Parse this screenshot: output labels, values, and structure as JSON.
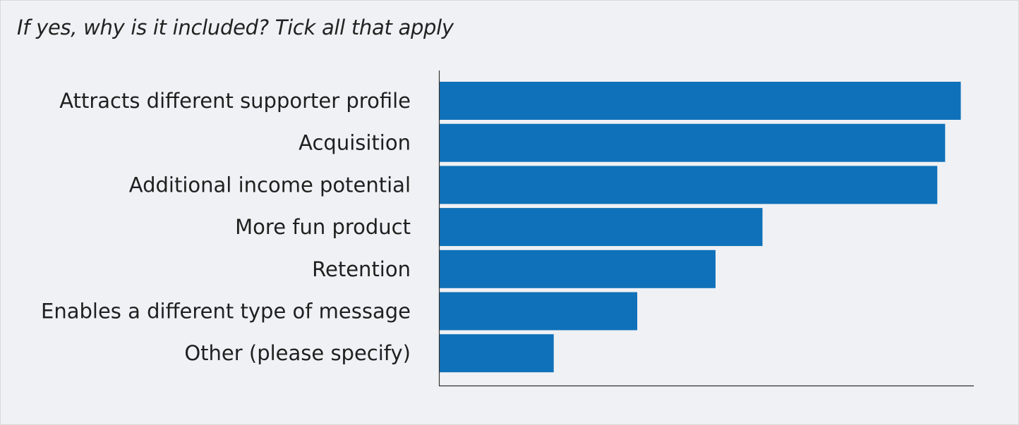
{
  "question": "If yes, why is it included? Tick all that apply",
  "colors": {
    "bar": "#0f71b9",
    "axis": "#333333",
    "background": "#f0f1f4",
    "label": "#1f1f1f"
  },
  "chart_data": {
    "type": "bar",
    "orientation": "horizontal",
    "title": "If yes, why is it included? Tick all that apply",
    "categories": [
      "Attracts different supporter profile",
      "Acquisition",
      "Additional income potential",
      "More fun product",
      "Retention",
      "Enables a different type of message",
      "Other (please specify)"
    ],
    "values": [
      100,
      97,
      95.5,
      62,
      53,
      38,
      22
    ],
    "xlim": [
      0,
      102.5
    ],
    "x_ticks_visible": false,
    "grid": false,
    "legend": "none"
  }
}
